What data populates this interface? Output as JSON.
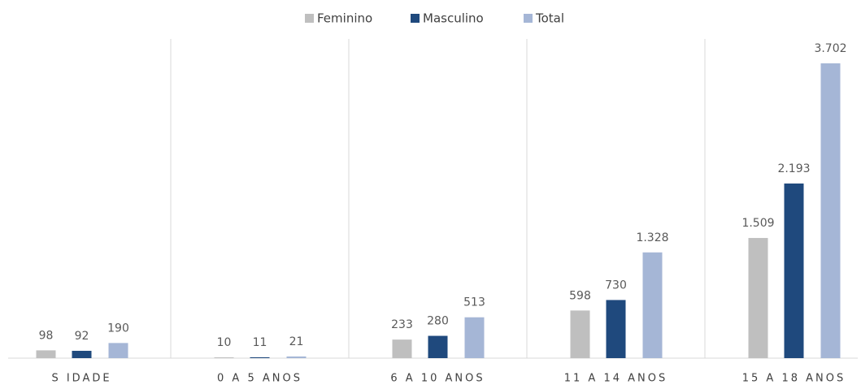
{
  "chart_data": {
    "type": "bar",
    "categories": [
      "S IDADE",
      "0 A 5 ANOS",
      "6 A 10 ANOS",
      "11 A 14 ANOS",
      "15 A 18 ANOS"
    ],
    "series": [
      {
        "name": "Feminino",
        "color": "#bfbfbf",
        "values": [
          98,
          10,
          233,
          598,
          1509
        ],
        "value_labels": [
          "98",
          "10",
          "233",
          "598",
          "1.509"
        ]
      },
      {
        "name": "Masculino",
        "color": "#1f497d",
        "values": [
          92,
          11,
          280,
          730,
          2193
        ],
        "value_labels": [
          "92",
          "11",
          "280",
          "730",
          "2.193"
        ]
      },
      {
        "name": "Total",
        "color": "#a5b6d6",
        "values": [
          190,
          21,
          513,
          1328,
          3702
        ],
        "value_labels": [
          "190",
          "21",
          "513",
          "1.328",
          "3.702"
        ]
      }
    ],
    "legend": "top"
  }
}
